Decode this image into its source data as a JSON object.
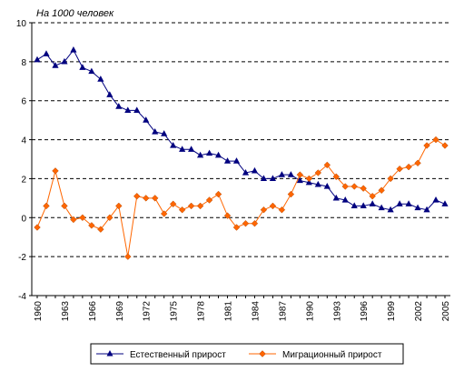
{
  "chart_data": {
    "type": "line",
    "title": "",
    "unit_label": "На 1000 человек",
    "xlabel": "",
    "ylabel": "",
    "ylim": [
      -4,
      10
    ],
    "yticks": [
      "10",
      "8",
      "6",
      "4",
      "2",
      "0",
      "-2",
      "-4"
    ],
    "xtick_labels": [
      "1960",
      "1963",
      "1966",
      "1969",
      "1972",
      "1975",
      "1978",
      "1981",
      "1984",
      "1987",
      "1990",
      "1993",
      "1996",
      "1999",
      "2002",
      "2005"
    ],
    "grid": "horizontal dashed",
    "legend_position": "bottom",
    "x": [
      1960,
      1961,
      1962,
      1963,
      1964,
      1965,
      1966,
      1967,
      1968,
      1969,
      1970,
      1971,
      1972,
      1973,
      1974,
      1975,
      1976,
      1977,
      1978,
      1979,
      1980,
      1981,
      1982,
      1983,
      1984,
      1985,
      1986,
      1987,
      1988,
      1989,
      1990,
      1991,
      1992,
      1993,
      1994,
      1995,
      1996,
      1997,
      1998,
      1999,
      2000,
      2001,
      2002,
      2003,
      2004,
      2005
    ],
    "series": [
      {
        "name": "Естественный прирост",
        "color": "#00007f",
        "marker": "triangle",
        "values": [
          8.1,
          8.4,
          7.8,
          8.0,
          8.6,
          7.7,
          7.5,
          7.1,
          6.3,
          5.7,
          5.5,
          5.5,
          5.0,
          4.4,
          4.3,
          3.7,
          3.5,
          3.5,
          3.2,
          3.3,
          3.2,
          2.9,
          2.9,
          2.3,
          2.4,
          2.0,
          2.0,
          2.2,
          2.2,
          1.9,
          1.8,
          1.7,
          1.6,
          1.0,
          0.9,
          0.6,
          0.6,
          0.7,
          0.5,
          0.4,
          0.7,
          0.7,
          0.5,
          0.4,
          0.9,
          0.7
        ]
      },
      {
        "name": "Миграционный прирост",
        "color": "#ff6600",
        "marker": "diamond",
        "values": [
          -0.5,
          0.6,
          2.4,
          0.6,
          -0.1,
          0.0,
          -0.4,
          -0.6,
          0.0,
          0.6,
          -2.0,
          1.1,
          1.0,
          1.0,
          0.2,
          0.7,
          0.4,
          0.6,
          0.6,
          0.9,
          1.2,
          0.1,
          -0.5,
          -0.3,
          -0.3,
          0.4,
          0.6,
          0.4,
          1.2,
          2.2,
          2.0,
          2.3,
          2.7,
          2.1,
          1.6,
          1.6,
          1.5,
          1.1,
          1.4,
          2.0,
          2.5,
          2.6,
          2.8,
          3.7,
          4.0,
          3.7
        ]
      }
    ]
  }
}
